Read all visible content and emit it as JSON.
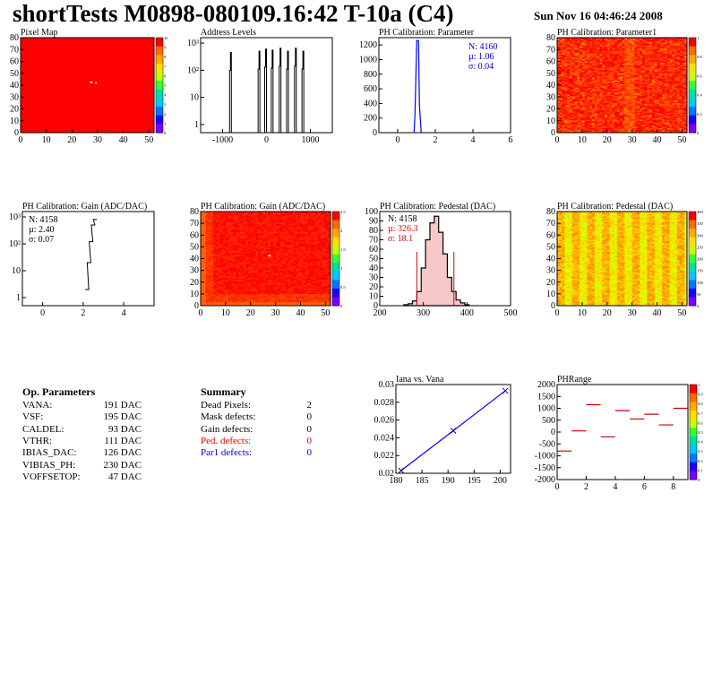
{
  "header": {
    "title": "shortTests M0898-080109.16:42 T-10a (C4)",
    "datetime": "Sun Nov 16 04:46:24 2008"
  },
  "colors": {
    "map_red": "#ff0000",
    "map_orange": "#ff7a00",
    "line_blue": "#0000ff",
    "axis": "#000000"
  },
  "panels": {
    "pixel_map": {
      "title": "Pixel Map",
      "x_ticks": [
        "0",
        "10",
        "20",
        "30",
        "40",
        "50"
      ],
      "y_ticks": [
        "0",
        "10",
        "20",
        "30",
        "40",
        "50",
        "60",
        "70",
        "80"
      ],
      "z_ticks": [
        "0",
        "1",
        "2",
        "3",
        "4",
        "5",
        "6",
        "7",
        "8",
        "9",
        "10"
      ]
    },
    "address_levels": {
      "title": "Address Levels",
      "x_ticks": [
        "-1000",
        "0",
        "1000"
      ],
      "y_ticks": [
        "1",
        "10",
        "10²",
        "10³"
      ]
    },
    "ph_cal_param": {
      "title": "PH Calibration: Parameter",
      "x_ticks": [
        "0",
        "2",
        "4",
        "6"
      ],
      "y_ticks": [
        "0",
        "200",
        "400",
        "600",
        "800",
        "1000",
        "1200"
      ],
      "stats": {
        "n": "N: 4160",
        "mu": "µ: 1.06",
        "sigma": "σ: 0.04"
      }
    },
    "ph_cal_param1": {
      "title": "PH Calibration: Parameter1",
      "x_ticks": [
        "0",
        "10",
        "20",
        "30",
        "40",
        "50"
      ],
      "y_ticks": [
        "0",
        "10",
        "20",
        "30",
        "40",
        "50",
        "60",
        "70",
        "80"
      ],
      "z_ticks": [
        "0",
        "0.2",
        "0.4",
        "0.6",
        "0.8",
        "1"
      ]
    },
    "gain_hist": {
      "title": "PH Calibration: Gain (ADC/DAC)",
      "x_ticks": [
        "0",
        "2",
        "4"
      ],
      "y_ticks": [
        "1",
        "10",
        "10²",
        "10³"
      ],
      "stats": {
        "n": "N: 4158",
        "mu": "µ: 2.40",
        "sigma": "σ: 0.07"
      }
    },
    "gain_map": {
      "title": "PH Calibration: Gain (ADC/DAC)",
      "x_ticks": [
        "0",
        "10",
        "20",
        "30",
        "40",
        "50"
      ],
      "y_ticks": [
        "0",
        "10",
        "20",
        "30",
        "40",
        "50",
        "60",
        "70",
        "80"
      ],
      "z_ticks": [
        "0",
        "0.5",
        "1",
        "1.5",
        "2",
        "2.5"
      ]
    },
    "ped_hist": {
      "title": "PH Calibration: Pedestal (DAC)",
      "x_ticks": [
        "200",
        "300",
        "400",
        "500"
      ],
      "y_ticks": [
        "0",
        "10",
        "20",
        "30",
        "40",
        "50",
        "60",
        "70",
        "80",
        "90",
        "100"
      ],
      "stats": {
        "n": "N: 4158",
        "mu": "µ: 326.3",
        "sigma": "σ: 18.1"
      }
    },
    "ped_map": {
      "title": "PH Calibration: Pedestal (DAC)",
      "x_ticks": [
        "0",
        "10",
        "20",
        "30",
        "40",
        "50"
      ],
      "y_ticks": [
        "0",
        "10",
        "20",
        "30",
        "40",
        "50",
        "60",
        "70",
        "80"
      ],
      "z_ticks": [
        "0",
        "50",
        "100",
        "150",
        "200",
        "250",
        "300",
        "350",
        "400"
      ]
    },
    "iana_vana": {
      "title": "Iana vs. Vana",
      "x_ticks": [
        "180",
        "185",
        "190",
        "195",
        "200"
      ],
      "y_ticks": [
        "0.02",
        "0.022",
        "0.024",
        "0.026",
        "0.028",
        "0.03"
      ]
    },
    "phrange": {
      "title": "PHRange",
      "x_ticks": [
        "0",
        "2",
        "4",
        "6",
        "8"
      ],
      "y_ticks": [
        "-2000",
        "-1500",
        "-1000",
        "-500",
        "0",
        "500",
        "1000",
        "1500",
        "2000"
      ],
      "z_ticks": [
        "0",
        "0.1",
        "0.2",
        "0.3",
        "0.4",
        "0.5",
        "0.6",
        "0.7",
        "0.8",
        "0.9",
        "1"
      ]
    }
  },
  "op_params": {
    "heading": "Op. Parameters",
    "rows": [
      {
        "name": "VANA:",
        "value": "191 DAC"
      },
      {
        "name": "VSF:",
        "value": "195 DAC"
      },
      {
        "name": "CALDEL:",
        "value": "93 DAC"
      },
      {
        "name": "VTHR:",
        "value": "111 DAC"
      },
      {
        "name": "IBIAS_DAC:",
        "value": "126 DAC"
      },
      {
        "name": "VIBIAS_PH:",
        "value": "230 DAC"
      },
      {
        "name": "VOFFSETOP:",
        "value": "47 DAC"
      }
    ]
  },
  "summary": {
    "heading": "Summary",
    "rows": [
      {
        "name": "Dead Pixels:",
        "value": "2",
        "color": "#000000"
      },
      {
        "name": "Mask defects:",
        "value": "0",
        "color": "#000000"
      },
      {
        "name": "Gain defects:",
        "value": "0",
        "color": "#000000"
      },
      {
        "name": "Ped. defects:",
        "value": "0",
        "color": "#e00000"
      },
      {
        "name": "Par1 defects:",
        "value": "0",
        "color": "#0000cc"
      }
    ]
  },
  "chart_data": [
    {
      "type": "heatmap",
      "title": "Pixel Map",
      "xlim": [
        0,
        52
      ],
      "ylim": [
        0,
        80
      ],
      "zlim": [
        0,
        10
      ],
      "note_values": "uniform ~10 with two dead pixels near (27,43)"
    },
    {
      "type": "bar",
      "title": "Address Levels",
      "x": [
        -800,
        -150,
        0,
        150,
        330,
        500,
        680,
        850
      ],
      "values": [
        450,
        500,
        600,
        550,
        650,
        500,
        650,
        500
      ],
      "xlim": [
        -1500,
        1500
      ],
      "y_scale": "log"
    },
    {
      "type": "bar",
      "title": "PH Calibration: Parameter",
      "x": [
        1.06
      ],
      "values": [
        1260
      ],
      "xlim": [
        -1,
        6
      ],
      "ylim": [
        0,
        1300
      ]
    },
    {
      "type": "heatmap",
      "title": "PH Calibration: Parameter1",
      "xlim": [
        0,
        52
      ],
      "ylim": [
        0,
        80
      ],
      "zlim": [
        0,
        1
      ]
    },
    {
      "type": "bar",
      "title": "PH Calibration: Gain (ADC/DAC)",
      "x": [
        2.1,
        2.2,
        2.3,
        2.4,
        2.5
      ],
      "values": [
        2,
        20,
        120,
        500,
        800
      ],
      "xlim": [
        -1,
        5.5
      ],
      "y_scale": "log"
    },
    {
      "type": "heatmap",
      "title": "PH Calibration: Gain (ADC/DAC)",
      "xlim": [
        0,
        52
      ],
      "ylim": [
        0,
        80
      ],
      "zlim": [
        0,
        2.6
      ]
    },
    {
      "type": "bar",
      "title": "PH Calibration: Pedestal (DAC)",
      "x": [
        260,
        270,
        280,
        290,
        300,
        310,
        320,
        330,
        340,
        350,
        360,
        370,
        380,
        390,
        400
      ],
      "values": [
        1,
        2,
        5,
        15,
        40,
        70,
        88,
        95,
        78,
        55,
        30,
        15,
        6,
        3,
        1
      ],
      "xlim": [
        200,
        500
      ],
      "ylim": [
        0,
        100
      ]
    },
    {
      "type": "heatmap",
      "title": "PH Calibration: Pedestal (DAC)",
      "xlim": [
        0,
        52
      ],
      "ylim": [
        0,
        80
      ],
      "zlim": [
        0,
        420
      ]
    },
    {
      "type": "line",
      "title": "Iana vs. Vana",
      "x": [
        181,
        191,
        201
      ],
      "values": [
        0.0203,
        0.0248,
        0.0293
      ],
      "xlim": [
        180,
        202
      ],
      "ylim": [
        0.02,
        0.03
      ]
    },
    {
      "type": "scatter",
      "title": "PHRange",
      "x": [
        0,
        1,
        2,
        3,
        4,
        5,
        6,
        7,
        8
      ],
      "values": [
        -800,
        50,
        1150,
        -200,
        900,
        550,
        750,
        300,
        1000
      ],
      "xlim": [
        0,
        9
      ],
      "ylim": [
        -2000,
        2000
      ]
    }
  ]
}
